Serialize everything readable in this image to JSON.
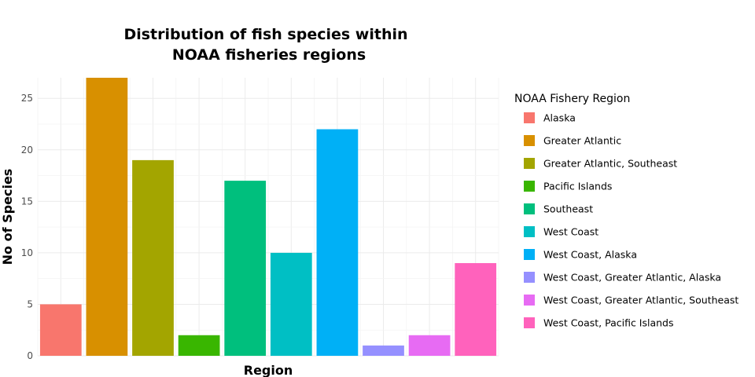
{
  "chart_data": {
    "type": "bar",
    "title_lines": [
      "Distribution of fish species within",
      "NOAA fisheries regions"
    ],
    "xlabel": "Region",
    "ylabel": "No of Species",
    "ylim": [
      0,
      27
    ],
    "yticks": [
      0,
      5,
      10,
      15,
      20,
      25
    ],
    "grid": true,
    "legend_title": "NOAA Fishery Region",
    "legend_position": "right",
    "categories": [
      "Alaska",
      "Greater Atlantic",
      "Greater Atlantic, Southeast",
      "Pacific Islands",
      "Southeast",
      "West Coast",
      "West Coast, Alaska",
      "West Coast, Greater Atlantic, Alaska",
      "West Coast, Greater Atlantic, Southeast",
      "West Coast, Pacific Islands"
    ],
    "values": [
      5,
      27,
      19,
      2,
      17,
      10,
      22,
      1,
      2,
      9
    ],
    "colors": [
      "#F8766D",
      "#D89000",
      "#A3A500",
      "#39B600",
      "#00BF7D",
      "#00BFC4",
      "#00B0F6",
      "#9590FF",
      "#E76BF3",
      "#FF62BC"
    ]
  }
}
